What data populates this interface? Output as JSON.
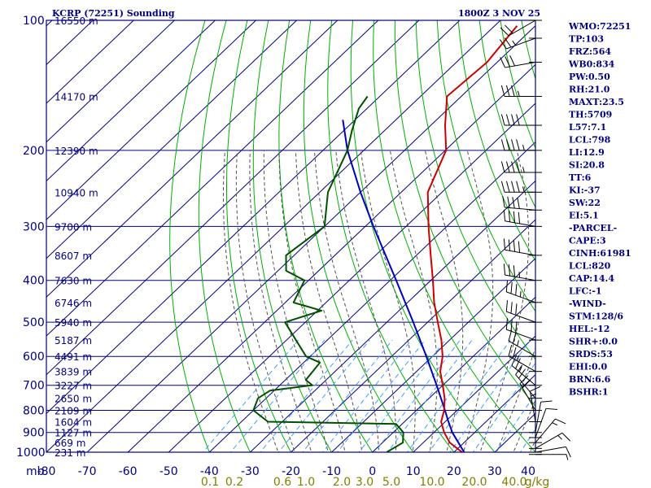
{
  "header": {
    "station": "KCRP (72251) Sounding",
    "datetime": "1800Z  3 NOV 25"
  },
  "indices": [
    "WMO:72251",
    "TP:103",
    "FRZ:564",
    "WB0:834",
    "PW:0.50",
    "RH:21.0",
    "MAXT:23.5",
    "TH:5709",
    "L57:7.1",
    "LCL:798",
    "LI:12.9",
    "SI:20.8",
    "TT:6",
    "KI:-37",
    "SW:22",
    "EI:5.1",
    "-PARCEL-",
    "CAPE:3",
    "CINH:61981",
    "LCL:820",
    "CAP:14.4",
    "LFC:-1",
    "-WIND-",
    "STM:128/6",
    "HEL:-12",
    "SHR+:0.0",
    "SRDS:53",
    "EHI:0.0",
    "BRN:6.6",
    "BSHR:1"
  ],
  "colors": {
    "frame": "#000080",
    "temperature": "#cc0000",
    "dewpoint": "#005000",
    "parcel": "#0000c0",
    "dry_adiabat": "#00b000",
    "moist_adiabat": "#505050",
    "mixing_ratio": "#40a0ff",
    "mixing_ratio_label": "#808000"
  },
  "chart_data": {
    "type": "skew-t",
    "pressure_unit_label": "mb",
    "temperature_unit": "C",
    "ylim_mb": [
      1000,
      100
    ],
    "xlim_c_at_1000mb": [
      -80,
      40
    ],
    "pressure_ticks": [
      {
        "p": 100,
        "label": "100"
      },
      {
        "p": 200,
        "label": "200"
      },
      {
        "p": 300,
        "label": "300"
      },
      {
        "p": 400,
        "label": "400"
      },
      {
        "p": 500,
        "label": "500"
      },
      {
        "p": 600,
        "label": "600"
      },
      {
        "p": 700,
        "label": "700"
      },
      {
        "p": 800,
        "label": "800"
      },
      {
        "p": 900,
        "label": "900"
      },
      {
        "p": 1000,
        "label": "1000"
      }
    ],
    "temperature_ticks": [
      {
        "t": -80,
        "label": "-80"
      },
      {
        "t": -70,
        "label": "-70"
      },
      {
        "t": -60,
        "label": "-60"
      },
      {
        "t": -50,
        "label": "-50"
      },
      {
        "t": -40,
        "label": "-40"
      },
      {
        "t": -30,
        "label": "-30"
      },
      {
        "t": -20,
        "label": "-20"
      },
      {
        "t": -10,
        "label": "-10"
      },
      {
        "t": 0,
        "label": "0"
      },
      {
        "t": 10,
        "label": "10"
      },
      {
        "t": 20,
        "label": "20"
      },
      {
        "t": 30,
        "label": "30"
      },
      {
        "t": 40,
        "label": "40"
      }
    ],
    "height_labels": [
      {
        "p": 100,
        "label": "16550 m"
      },
      {
        "p": 150,
        "label": "14170 m"
      },
      {
        "p": 200,
        "label": "12390 m"
      },
      {
        "p": 250,
        "label": "10940 m"
      },
      {
        "p": 300,
        "label": "9700 m"
      },
      {
        "p": 350,
        "label": "8607 m"
      },
      {
        "p": 400,
        "label": "7630 m"
      },
      {
        "p": 450,
        "label": "6746 m"
      },
      {
        "p": 500,
        "label": "5940 m"
      },
      {
        "p": 550,
        "label": "5187 m"
      },
      {
        "p": 600,
        "label": "4491 m"
      },
      {
        "p": 650,
        "label": "3839 m"
      },
      {
        "p": 700,
        "label": "3227 m"
      },
      {
        "p": 750,
        "label": "2650 m"
      },
      {
        "p": 800,
        "label": "2109 m"
      },
      {
        "p": 850,
        "label": "1604 m"
      },
      {
        "p": 900,
        "label": "1127 m"
      },
      {
        "p": 950,
        "label": "669 m"
      },
      {
        "p": 1000,
        "label": "231 m"
      }
    ],
    "mixing_ratio_labels": [
      "0.1",
      "0.2",
      "0.6",
      "1.0",
      "2.0",
      "3.0",
      "5.0",
      "10.0",
      "20.0",
      "40.0",
      "g/kg"
    ],
    "temperature_profile": [
      {
        "p": 1012,
        "t": 23.5
      },
      {
        "p": 1000,
        "t": 22.0
      },
      {
        "p": 950,
        "t": 16.5
      },
      {
        "p": 900,
        "t": 12.5
      },
      {
        "p": 850,
        "t": 9.0
      },
      {
        "p": 800,
        "t": 6.8
      },
      {
        "p": 750,
        "t": 3.8
      },
      {
        "p": 700,
        "t": 0.0
      },
      {
        "p": 650,
        "t": -4.2
      },
      {
        "p": 600,
        "t": -7.5
      },
      {
        "p": 550,
        "t": -12.0
      },
      {
        "p": 500,
        "t": -17.5
      },
      {
        "p": 450,
        "t": -23.5
      },
      {
        "p": 400,
        "t": -29.5
      },
      {
        "p": 350,
        "t": -36.5
      },
      {
        "p": 300,
        "t": -44.5
      },
      {
        "p": 250,
        "t": -53.5
      },
      {
        "p": 200,
        "t": -59.8
      },
      {
        "p": 175,
        "t": -66.5
      },
      {
        "p": 150,
        "t": -73.5
      },
      {
        "p": 125,
        "t": -72.5
      },
      {
        "p": 103,
        "t": -74.5
      }
    ],
    "dewpoint_profile": [
      {
        "p": 1000,
        "t": 3.5
      },
      {
        "p": 950,
        "t": 5.0
      },
      {
        "p": 900,
        "t": 2.5
      },
      {
        "p": 860,
        "t": -1.5
      },
      {
        "p": 850,
        "t": -33.5
      },
      {
        "p": 800,
        "t": -40.0
      },
      {
        "p": 750,
        "t": -42.0
      },
      {
        "p": 720,
        "t": -41.0
      },
      {
        "p": 700,
        "t": -32.0
      },
      {
        "p": 680,
        "t": -35.0
      },
      {
        "p": 650,
        "t": -35.5
      },
      {
        "p": 620,
        "t": -36.0
      },
      {
        "p": 600,
        "t": -41.0
      },
      {
        "p": 500,
        "t": -55.0
      },
      {
        "p": 470,
        "t": -49.0
      },
      {
        "p": 450,
        "t": -58.0
      },
      {
        "p": 400,
        "t": -61.0
      },
      {
        "p": 380,
        "t": -68.0
      },
      {
        "p": 350,
        "t": -72.0
      },
      {
        "p": 300,
        "t": -70.0
      },
      {
        "p": 250,
        "t": -78.0
      },
      {
        "p": 200,
        "t": -84.0
      },
      {
        "p": 180,
        "t": -88.0
      },
      {
        "p": 160,
        "t": -92.0
      },
      {
        "p": 150,
        "t": -93.0
      }
    ],
    "parcel_profile": [
      {
        "p": 1000,
        "t": 22.5
      },
      {
        "p": 900,
        "t": 14.5
      },
      {
        "p": 850,
        "t": 10.8
      },
      {
        "p": 800,
        "t": 7.0
      },
      {
        "p": 700,
        "t": -1.5
      },
      {
        "p": 600,
        "t": -11.5
      },
      {
        "p": 500,
        "t": -23.5
      },
      {
        "p": 400,
        "t": -38.5
      },
      {
        "p": 300,
        "t": -58.0
      },
      {
        "p": 250,
        "t": -70.0
      },
      {
        "p": 200,
        "t": -84.0
      },
      {
        "p": 170,
        "t": -93.0
      }
    ],
    "wind_barbs": [
      {
        "p": 1012,
        "dir": 90,
        "spd": 5
      },
      {
        "p": 1000,
        "dir": 80,
        "spd": 10
      },
      {
        "p": 980,
        "dir": 60,
        "spd": 15
      },
      {
        "p": 950,
        "dir": 40,
        "spd": 15
      },
      {
        "p": 925,
        "dir": 20,
        "spd": 10
      },
      {
        "p": 900,
        "dir": 10,
        "spd": 10
      },
      {
        "p": 850,
        "dir": 350,
        "spd": 15
      },
      {
        "p": 800,
        "dir": 330,
        "spd": 20
      },
      {
        "p": 750,
        "dir": 320,
        "spd": 20
      },
      {
        "p": 700,
        "dir": 310,
        "spd": 25
      },
      {
        "p": 650,
        "dir": 300,
        "spd": 25
      },
      {
        "p": 600,
        "dir": 300,
        "spd": 25
      },
      {
        "p": 550,
        "dir": 290,
        "spd": 30
      },
      {
        "p": 500,
        "dir": 290,
        "spd": 30
      },
      {
        "p": 450,
        "dir": 290,
        "spd": 35
      },
      {
        "p": 400,
        "dir": 280,
        "spd": 35
      },
      {
        "p": 350,
        "dir": 280,
        "spd": 40
      },
      {
        "p": 300,
        "dir": 280,
        "spd": 40
      },
      {
        "p": 275,
        "dir": 275,
        "spd": 40
      },
      {
        "p": 250,
        "dir": 270,
        "spd": 45
      },
      {
        "p": 225,
        "dir": 270,
        "spd": 45
      },
      {
        "p": 200,
        "dir": 270,
        "spd": 45
      },
      {
        "p": 175,
        "dir": 270,
        "spd": 40
      },
      {
        "p": 150,
        "dir": 270,
        "spd": 35
      },
      {
        "p": 125,
        "dir": 260,
        "spd": 30
      },
      {
        "p": 110,
        "dir": 250,
        "spd": 25
      },
      {
        "p": 100,
        "dir": 240,
        "spd": 20
      }
    ]
  }
}
